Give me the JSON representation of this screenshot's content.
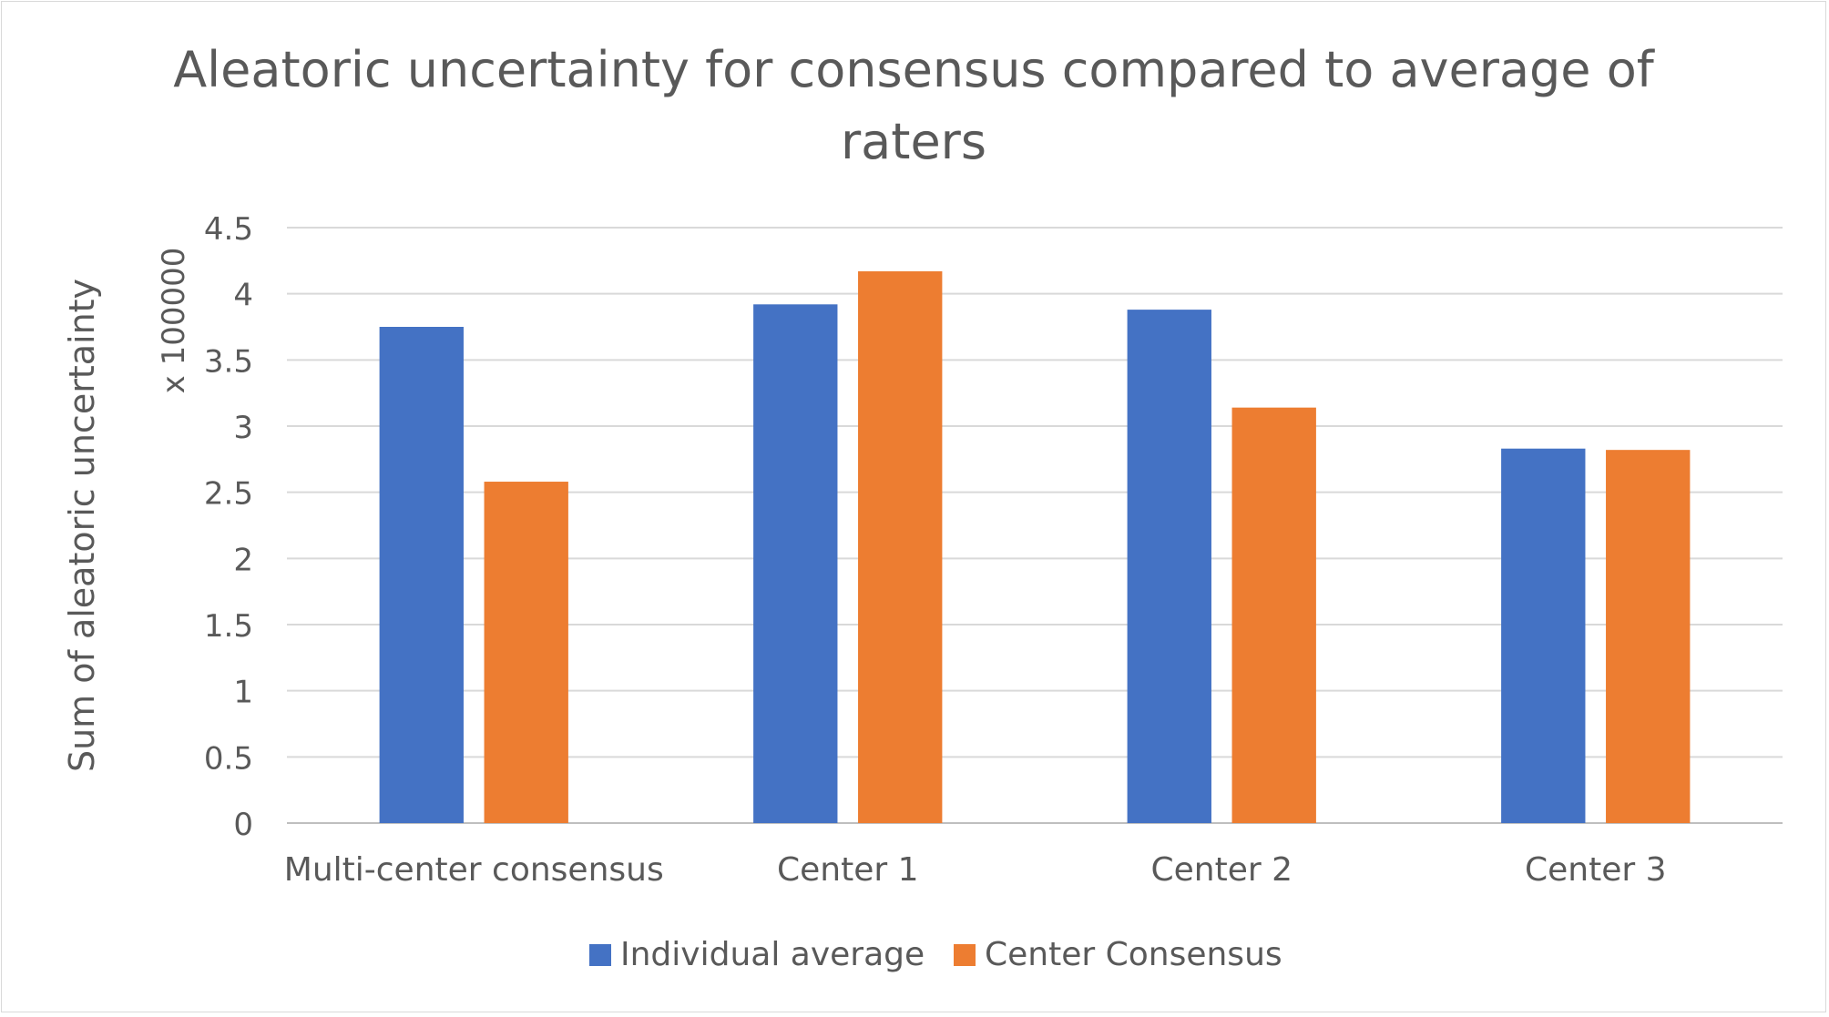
{
  "chart_data": {
    "type": "bar",
    "title_lines": [
      "Aleatoric uncertainty for consensus compared to average of",
      "raters"
    ],
    "ylabel": "Sum of aleatoric uncertainty",
    "y_multiplier_label": "x 100000",
    "xlabel": "",
    "categories": [
      "Multi-center consensus",
      "Center 1",
      "Center 2",
      "Center 3"
    ],
    "series": [
      {
        "name": "Individual average",
        "color": "#4472C4",
        "values": [
          3.75,
          3.92,
          3.88,
          2.83
        ]
      },
      {
        "name": "Center Consensus",
        "color": "#ED7D31",
        "values": [
          2.58,
          4.17,
          3.14,
          2.82
        ]
      }
    ],
    "ylim": [
      0,
      4.5
    ],
    "yticks": [
      "0",
      "0.5",
      "1",
      "1.5",
      "2",
      "2.5",
      "3",
      "3.5",
      "4",
      "4.5"
    ],
    "grid": true,
    "legend": "bottom-center"
  }
}
